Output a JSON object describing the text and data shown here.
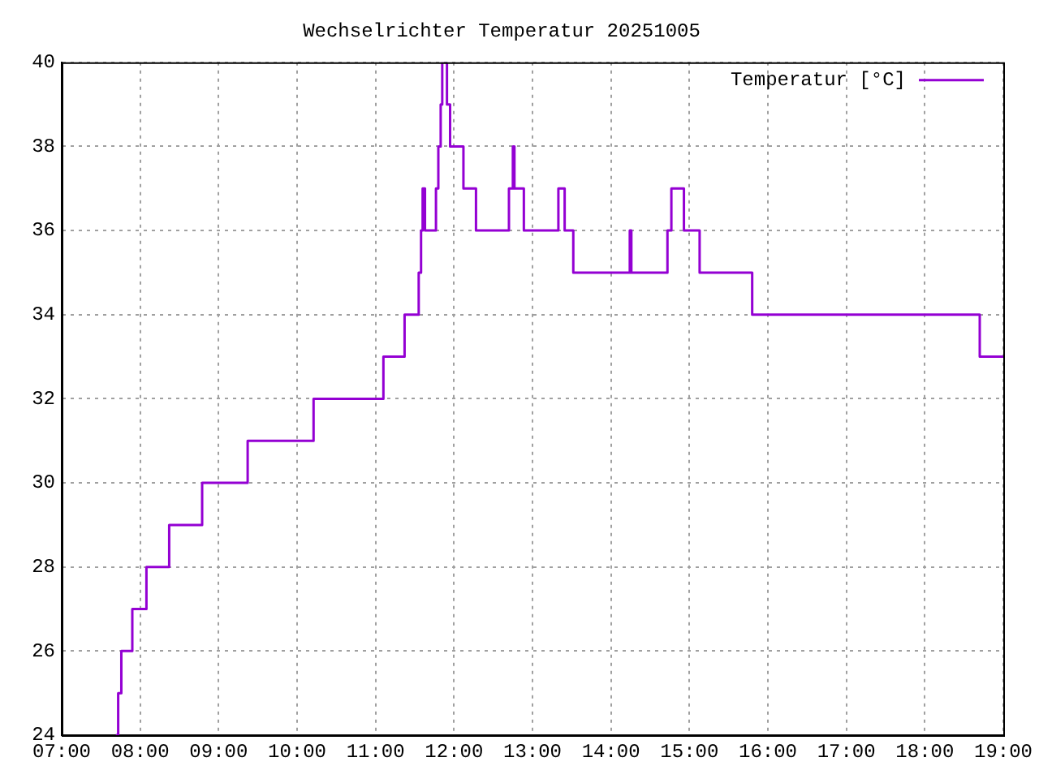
{
  "chart_data": {
    "type": "step",
    "title": "Wechselrichter Temperatur 20251005",
    "x": [
      7.69,
      7.72,
      7.76,
      7.9,
      8.08,
      8.37,
      8.79,
      9.37,
      10.21,
      11.1,
      11.37,
      11.55,
      11.58,
      11.6,
      11.63,
      11.77,
      11.8,
      11.83,
      11.85,
      11.91,
      11.95,
      12.12,
      12.28,
      12.7,
      12.75,
      12.77,
      12.89,
      13.33,
      13.41,
      13.52,
      14.24,
      14.26,
      14.72,
      14.77,
      14.93,
      15.13,
      15.8,
      18.7,
      19
    ],
    "series": [
      {
        "name": "Temperatur [°C]",
        "color": "#9400d3",
        "values": [
          24,
          25,
          26,
          27,
          28,
          29,
          30,
          31,
          32,
          33,
          34,
          35,
          36,
          37,
          36,
          37,
          38,
          39,
          40,
          39,
          38,
          37,
          36,
          37,
          38,
          37,
          36,
          37,
          36,
          35,
          36,
          35,
          36,
          37,
          36,
          35,
          34,
          33,
          33
        ]
      }
    ],
    "xlim": [
      7,
      19
    ],
    "xticks": [
      {
        "value": 7,
        "label": "07:00"
      },
      {
        "value": 8,
        "label": "08:00"
      },
      {
        "value": 9,
        "label": "09:00"
      },
      {
        "value": 10,
        "label": "10:00"
      },
      {
        "value": 11,
        "label": "11:00"
      },
      {
        "value": 12,
        "label": "12:00"
      },
      {
        "value": 13,
        "label": "13:00"
      },
      {
        "value": 14,
        "label": "14:00"
      },
      {
        "value": 15,
        "label": "15:00"
      },
      {
        "value": 16,
        "label": "16:00"
      },
      {
        "value": 17,
        "label": "17:00"
      },
      {
        "value": 18,
        "label": "18:00"
      },
      {
        "value": 19,
        "label": "19:00"
      }
    ],
    "ylim": [
      24,
      40
    ],
    "yticks": [
      24,
      26,
      28,
      30,
      32,
      34,
      36,
      38,
      40
    ],
    "grid": true,
    "legend": "top right",
    "line_style": "solid",
    "marker": "none"
  }
}
